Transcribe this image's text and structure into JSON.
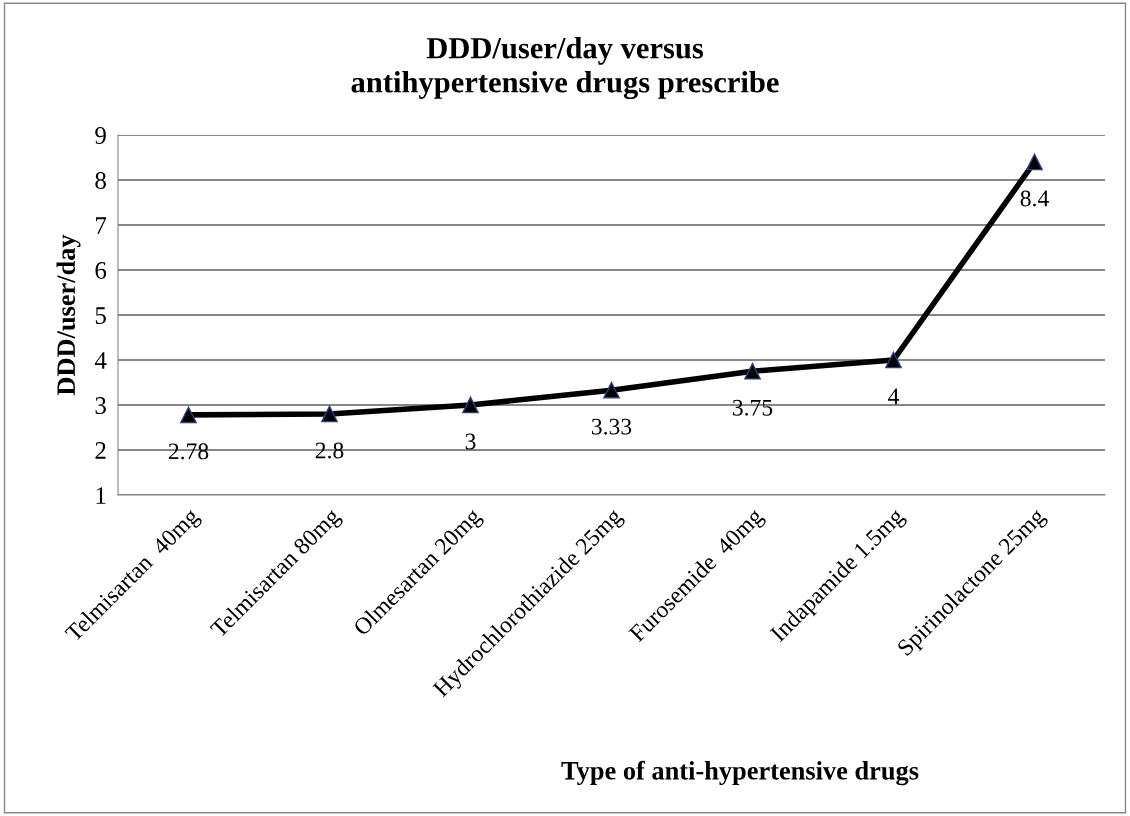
{
  "chart_data": {
    "type": "line",
    "title": "DDD/user/day versus\nantihypertensive drugs prescribe",
    "xlabel": "Type of anti-hypertensive drugs",
    "ylabel": "DDD/user/day",
    "categories": [
      "Telmisartan  40mg",
      "Telmisartan 80mg",
      "Olmesartan 20mg",
      "Hydrochlorothiazide 25mg",
      "Furosemide  40mg",
      "Indapamide 1.5mg",
      "Spirinolactone 25mg"
    ],
    "series": [
      {
        "color": "#000000",
        "values": [
          2.78,
          2.8,
          3,
          3.33,
          3.75,
          4,
          8.4
        ]
      }
    ],
    "ylim": [
      1,
      9
    ],
    "yticks": [
      1,
      2,
      3,
      4,
      5,
      6,
      7,
      8,
      9
    ],
    "grid": "y",
    "marker": "triangle",
    "line_style": "solid",
    "data_labels": true,
    "legend": false
  }
}
